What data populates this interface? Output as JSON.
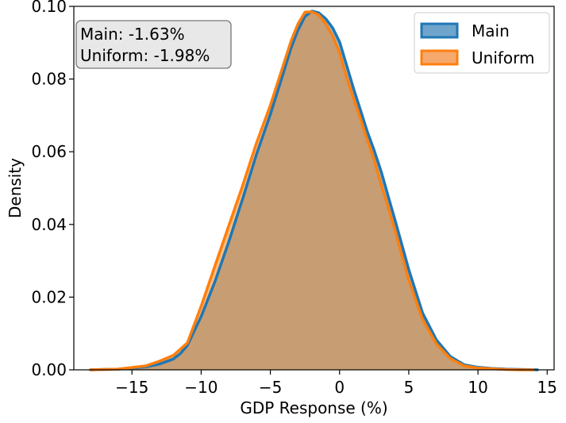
{
  "chart_data": {
    "type": "area",
    "title": "",
    "xlabel": "GDP Response (%)",
    "ylabel": "Density",
    "xlim": [
      -19.2,
      15.5
    ],
    "ylim": [
      0,
      0.1
    ],
    "xticks": [
      -15,
      -10,
      -5,
      0,
      5,
      10,
      15
    ],
    "xtick_labels": [
      "−15",
      "−10",
      "−5",
      "0",
      "5",
      "10",
      "15"
    ],
    "yticks": [
      0,
      0.02,
      0.04,
      0.06,
      0.08,
      0.1
    ],
    "ytick_labels": [
      "0.00",
      "0.02",
      "0.04",
      "0.06",
      "0.08",
      "0.10"
    ],
    "grid": false,
    "legend_position": "top-right",
    "annotation": {
      "lines": [
        "Main: -1.63%",
        "Uniform: -1.98%"
      ],
      "position": "top-left"
    },
    "series": [
      {
        "name": "Main",
        "color": "#1f77b4",
        "fill_color": "#6fa4cd",
        "x": [
          -18,
          -16,
          -14,
          -13,
          -12,
          -11.5,
          -11,
          -10,
          -9,
          -8,
          -7,
          -6,
          -5,
          -4,
          -3.5,
          -3,
          -2.5,
          -2,
          -1.5,
          -1,
          -0.5,
          0,
          0.5,
          1,
          1.5,
          2,
          2.5,
          3,
          3.5,
          4,
          5,
          6,
          7,
          8,
          9,
          10,
          11,
          12,
          13,
          14.3
        ],
        "y": [
          0.0,
          0.0002,
          0.0008,
          0.0016,
          0.003,
          0.0045,
          0.0067,
          0.0147,
          0.0243,
          0.0353,
          0.0471,
          0.0593,
          0.0703,
          0.0824,
          0.0886,
          0.0935,
          0.0972,
          0.0987,
          0.0982,
          0.0966,
          0.0941,
          0.0902,
          0.0839,
          0.0775,
          0.0716,
          0.0656,
          0.0604,
          0.0546,
          0.0479,
          0.0413,
          0.0276,
          0.0156,
          0.0082,
          0.0037,
          0.0014,
          0.0007,
          0.0004,
          0.0002,
          0.0001,
          0.0
        ]
      },
      {
        "name": "Uniform",
        "color": "#ff7f0e",
        "fill_color": "#f6a96d",
        "x": [
          -18,
          -16,
          -14,
          -13,
          -12,
          -11,
          -10,
          -9,
          -8,
          -7,
          -6,
          -5,
          -4,
          -3.5,
          -3,
          -2.5,
          -2,
          -1.5,
          -1,
          -0.5,
          0,
          0.5,
          1,
          1.5,
          2,
          2.5,
          3,
          3.5,
          4,
          5,
          6,
          7,
          8,
          9,
          10,
          11,
          12,
          13,
          14
        ],
        "y": [
          0.0,
          0.0002,
          0.0011,
          0.0024,
          0.004,
          0.0074,
          0.0175,
          0.0286,
          0.0397,
          0.0507,
          0.0624,
          0.0728,
          0.0846,
          0.0905,
          0.0952,
          0.0984,
          0.0985,
          0.0976,
          0.0952,
          0.0919,
          0.0872,
          0.0806,
          0.0748,
          0.0692,
          0.0633,
          0.0578,
          0.0511,
          0.0449,
          0.0384,
          0.0247,
          0.0138,
          0.0071,
          0.0031,
          0.0011,
          0.0005,
          0.0003,
          0.0001,
          0.0,
          0.0
        ]
      }
    ]
  }
}
